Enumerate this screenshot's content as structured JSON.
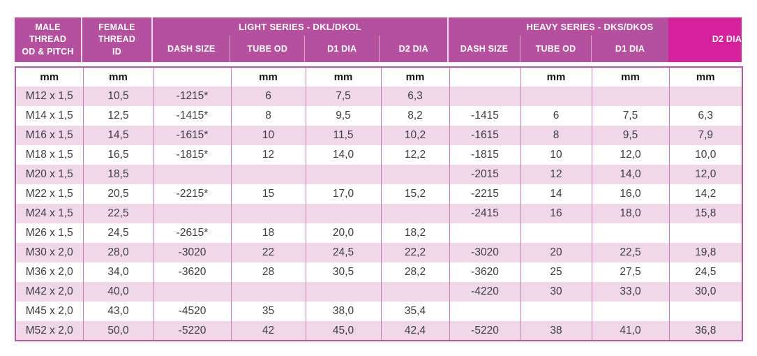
{
  "colors": {
    "header_bg": "#b4509e",
    "highlight_bg": "#d6219c",
    "row_stripe": "#f0d8e9",
    "border_outer": "#b25ba4",
    "border_inner": "#c77cb8",
    "header_text": "#ffffff",
    "body_text": "#3d3d3d"
  },
  "header": {
    "male_thread": {
      "line1": "MALE",
      "line2": "THREAD",
      "line3": "OD & PITCH"
    },
    "female_thread": {
      "line1": "FEMALE",
      "line2": "THREAD",
      "line3": "ID"
    },
    "light_series": {
      "title": "LIGHT SERIES - DKL/DKOL",
      "columns": [
        "DASH SIZE",
        "TUBE OD",
        "D1 DIA",
        "D2 DIA"
      ]
    },
    "heavy_series": {
      "title": "HEAVY SERIES - DKS/DKOS",
      "columns": [
        "DASH SIZE",
        "TUBE OD",
        "D1 DIA"
      ],
      "d2_label": "D2 DIA"
    }
  },
  "table": {
    "unit_row": [
      "mm",
      "mm",
      "",
      "mm",
      "mm",
      "mm",
      "",
      "mm",
      "mm",
      "mm"
    ],
    "rows": [
      [
        "M12 x 1,5",
        "10,5",
        "-1215*",
        "6",
        "7,5",
        "6,3",
        "",
        "",
        "",
        ""
      ],
      [
        "M14 x 1,5",
        "12,5",
        "-1415*",
        "8",
        "9,5",
        "8,2",
        "-1415",
        "6",
        "7,5",
        "6,3"
      ],
      [
        "M16 x 1,5",
        "14,5",
        "-1615*",
        "10",
        "11,5",
        "10,2",
        "-1615",
        "8",
        "9,5",
        "7,9"
      ],
      [
        "M18 x 1,5",
        "16,5",
        "-1815*",
        "12",
        "14,0",
        "12,2",
        "-1815",
        "10",
        "12,0",
        "10,0"
      ],
      [
        "M20 x 1,5",
        "18,5",
        "",
        "",
        "",
        "",
        "-2015",
        "12",
        "14,0",
        "12,0"
      ],
      [
        "M22 x 1,5",
        "20,5",
        "-2215*",
        "15",
        "17,0",
        "15,2",
        "-2215",
        "14",
        "16,0",
        "14,2"
      ],
      [
        "M24 x 1,5",
        "22,5",
        "",
        "",
        "",
        "",
        "-2415",
        "16",
        "18,0",
        "15,8"
      ],
      [
        "M26 x 1,5",
        "24,5",
        "-2615*",
        "18",
        "20,0",
        "18,2",
        "",
        "",
        "",
        ""
      ],
      [
        "M30 x 2,0",
        "28,0",
        "-3020",
        "22",
        "24,5",
        "22,2",
        "-3020",
        "20",
        "22,5",
        "19,8"
      ],
      [
        "M36 x 2,0",
        "34,0",
        "-3620",
        "28",
        "30,5",
        "28,2",
        "-3620",
        "25",
        "27,5",
        "24,5"
      ],
      [
        "M42 x 2,0",
        "40,0",
        "",
        "",
        "",
        "",
        "-4220",
        "30",
        "33,0",
        "30,0"
      ],
      [
        "M45 x 2,0",
        "43,0",
        "-4520",
        "35",
        "38,0",
        "35,4",
        "",
        "",
        "",
        ""
      ],
      [
        "M52 x 2,0",
        "50,0",
        "-5220",
        "42",
        "45,0",
        "42,4",
        "-5220",
        "38",
        "41,0",
        "36,8"
      ]
    ]
  }
}
